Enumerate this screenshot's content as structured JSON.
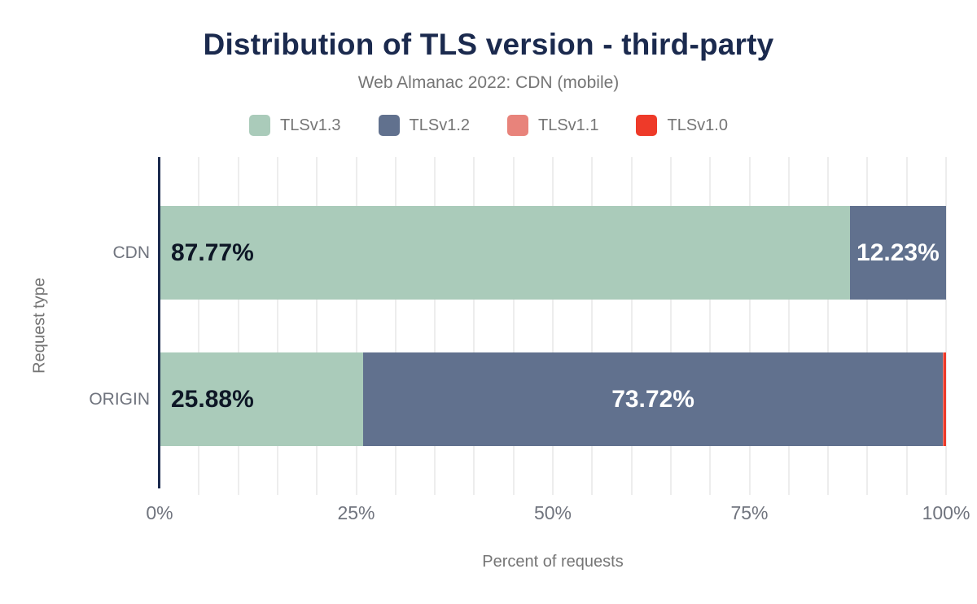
{
  "colors": {
    "background": "#ffffff",
    "title": "#1b2a4e",
    "axis_line": "#1b2a4e",
    "muted_text": "#757575",
    "tick_text": "#70747e",
    "grid": "#ededed",
    "label_dark": "#0e1726",
    "label_light": "#ffffff"
  },
  "chart_data": {
    "type": "bar",
    "orientation": "horizontal",
    "stacked": true,
    "title": "Distribution of TLS version - third-party",
    "subtitle": "Web Almanac 2022: CDN (mobile)",
    "xlabel": "Percent of requests",
    "ylabel": "Request type",
    "categories": [
      "CDN",
      "ORIGIN"
    ],
    "series": [
      {
        "name": "TLSv1.3",
        "color": "#aacbba",
        "values": [
          87.77,
          25.88
        ],
        "data_labels": [
          "87.77%",
          "25.88%"
        ]
      },
      {
        "name": "TLSv1.2",
        "color": "#61718e",
        "values": [
          12.23,
          73.72
        ],
        "data_labels": [
          "12.23%",
          "73.72%"
        ]
      },
      {
        "name": "TLSv1.1",
        "color": "#e8837b",
        "values": [
          0,
          0.1
        ],
        "data_labels": [
          "",
          ""
        ]
      },
      {
        "name": "TLSv1.0",
        "color": "#ee3a29",
        "values": [
          0,
          0.3
        ],
        "data_labels": [
          "",
          ""
        ]
      }
    ],
    "x_ticks": [
      {
        "label": "0%",
        "value": 0
      },
      {
        "label": "25%",
        "value": 25
      },
      {
        "label": "50%",
        "value": 50
      },
      {
        "label": "75%",
        "value": 75
      },
      {
        "label": "100%",
        "value": 100
      }
    ],
    "xlim": [
      0,
      100
    ],
    "grid": {
      "vertical": true,
      "interval_percent": 5
    },
    "legend_position": "top"
  }
}
